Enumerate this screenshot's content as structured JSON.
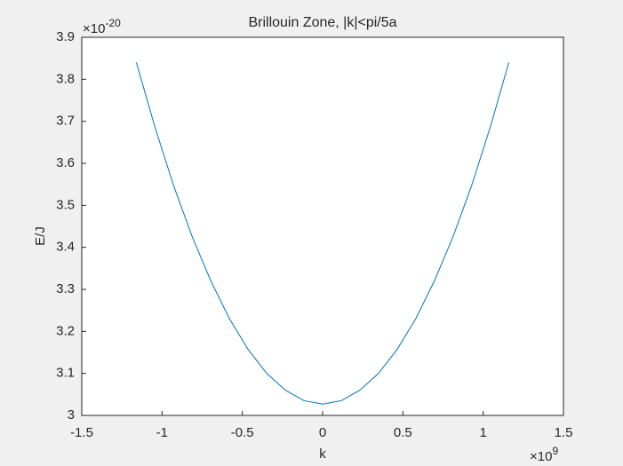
{
  "chart_data": {
    "type": "line",
    "title": "Brillouin Zone, |k|<pi/5a",
    "xlabel": "k",
    "ylabel": "E/J",
    "x_exponent_base": "×10",
    "x_exponent": "9",
    "y_exponent_base": "×10",
    "y_exponent": "-20",
    "x": [
      -1.16,
      -1.044,
      -0.928,
      -0.812,
      -0.696,
      -0.58,
      -0.464,
      -0.348,
      -0.232,
      -0.116,
      0,
      0.116,
      0.232,
      0.348,
      0.464,
      0.58,
      0.696,
      0.812,
      0.928,
      1.044,
      1.16
    ],
    "series": [
      {
        "color": "#0072bd",
        "values": [
          3.84,
          3.686,
          3.547,
          3.425,
          3.32,
          3.23,
          3.157,
          3.1,
          3.06,
          3.035,
          3.027,
          3.035,
          3.06,
          3.1,
          3.157,
          3.23,
          3.32,
          3.425,
          3.547,
          3.686,
          3.84
        ]
      }
    ],
    "xlim": [
      -1.5,
      1.5
    ],
    "xticks": [
      -1.5,
      -1,
      -0.5,
      0,
      0.5,
      1,
      1.5
    ],
    "ylim": [
      3,
      3.9
    ],
    "yticks": [
      3,
      3.1,
      3.2,
      3.3,
      3.4,
      3.5,
      3.6,
      3.7,
      3.8,
      3.9
    ]
  }
}
